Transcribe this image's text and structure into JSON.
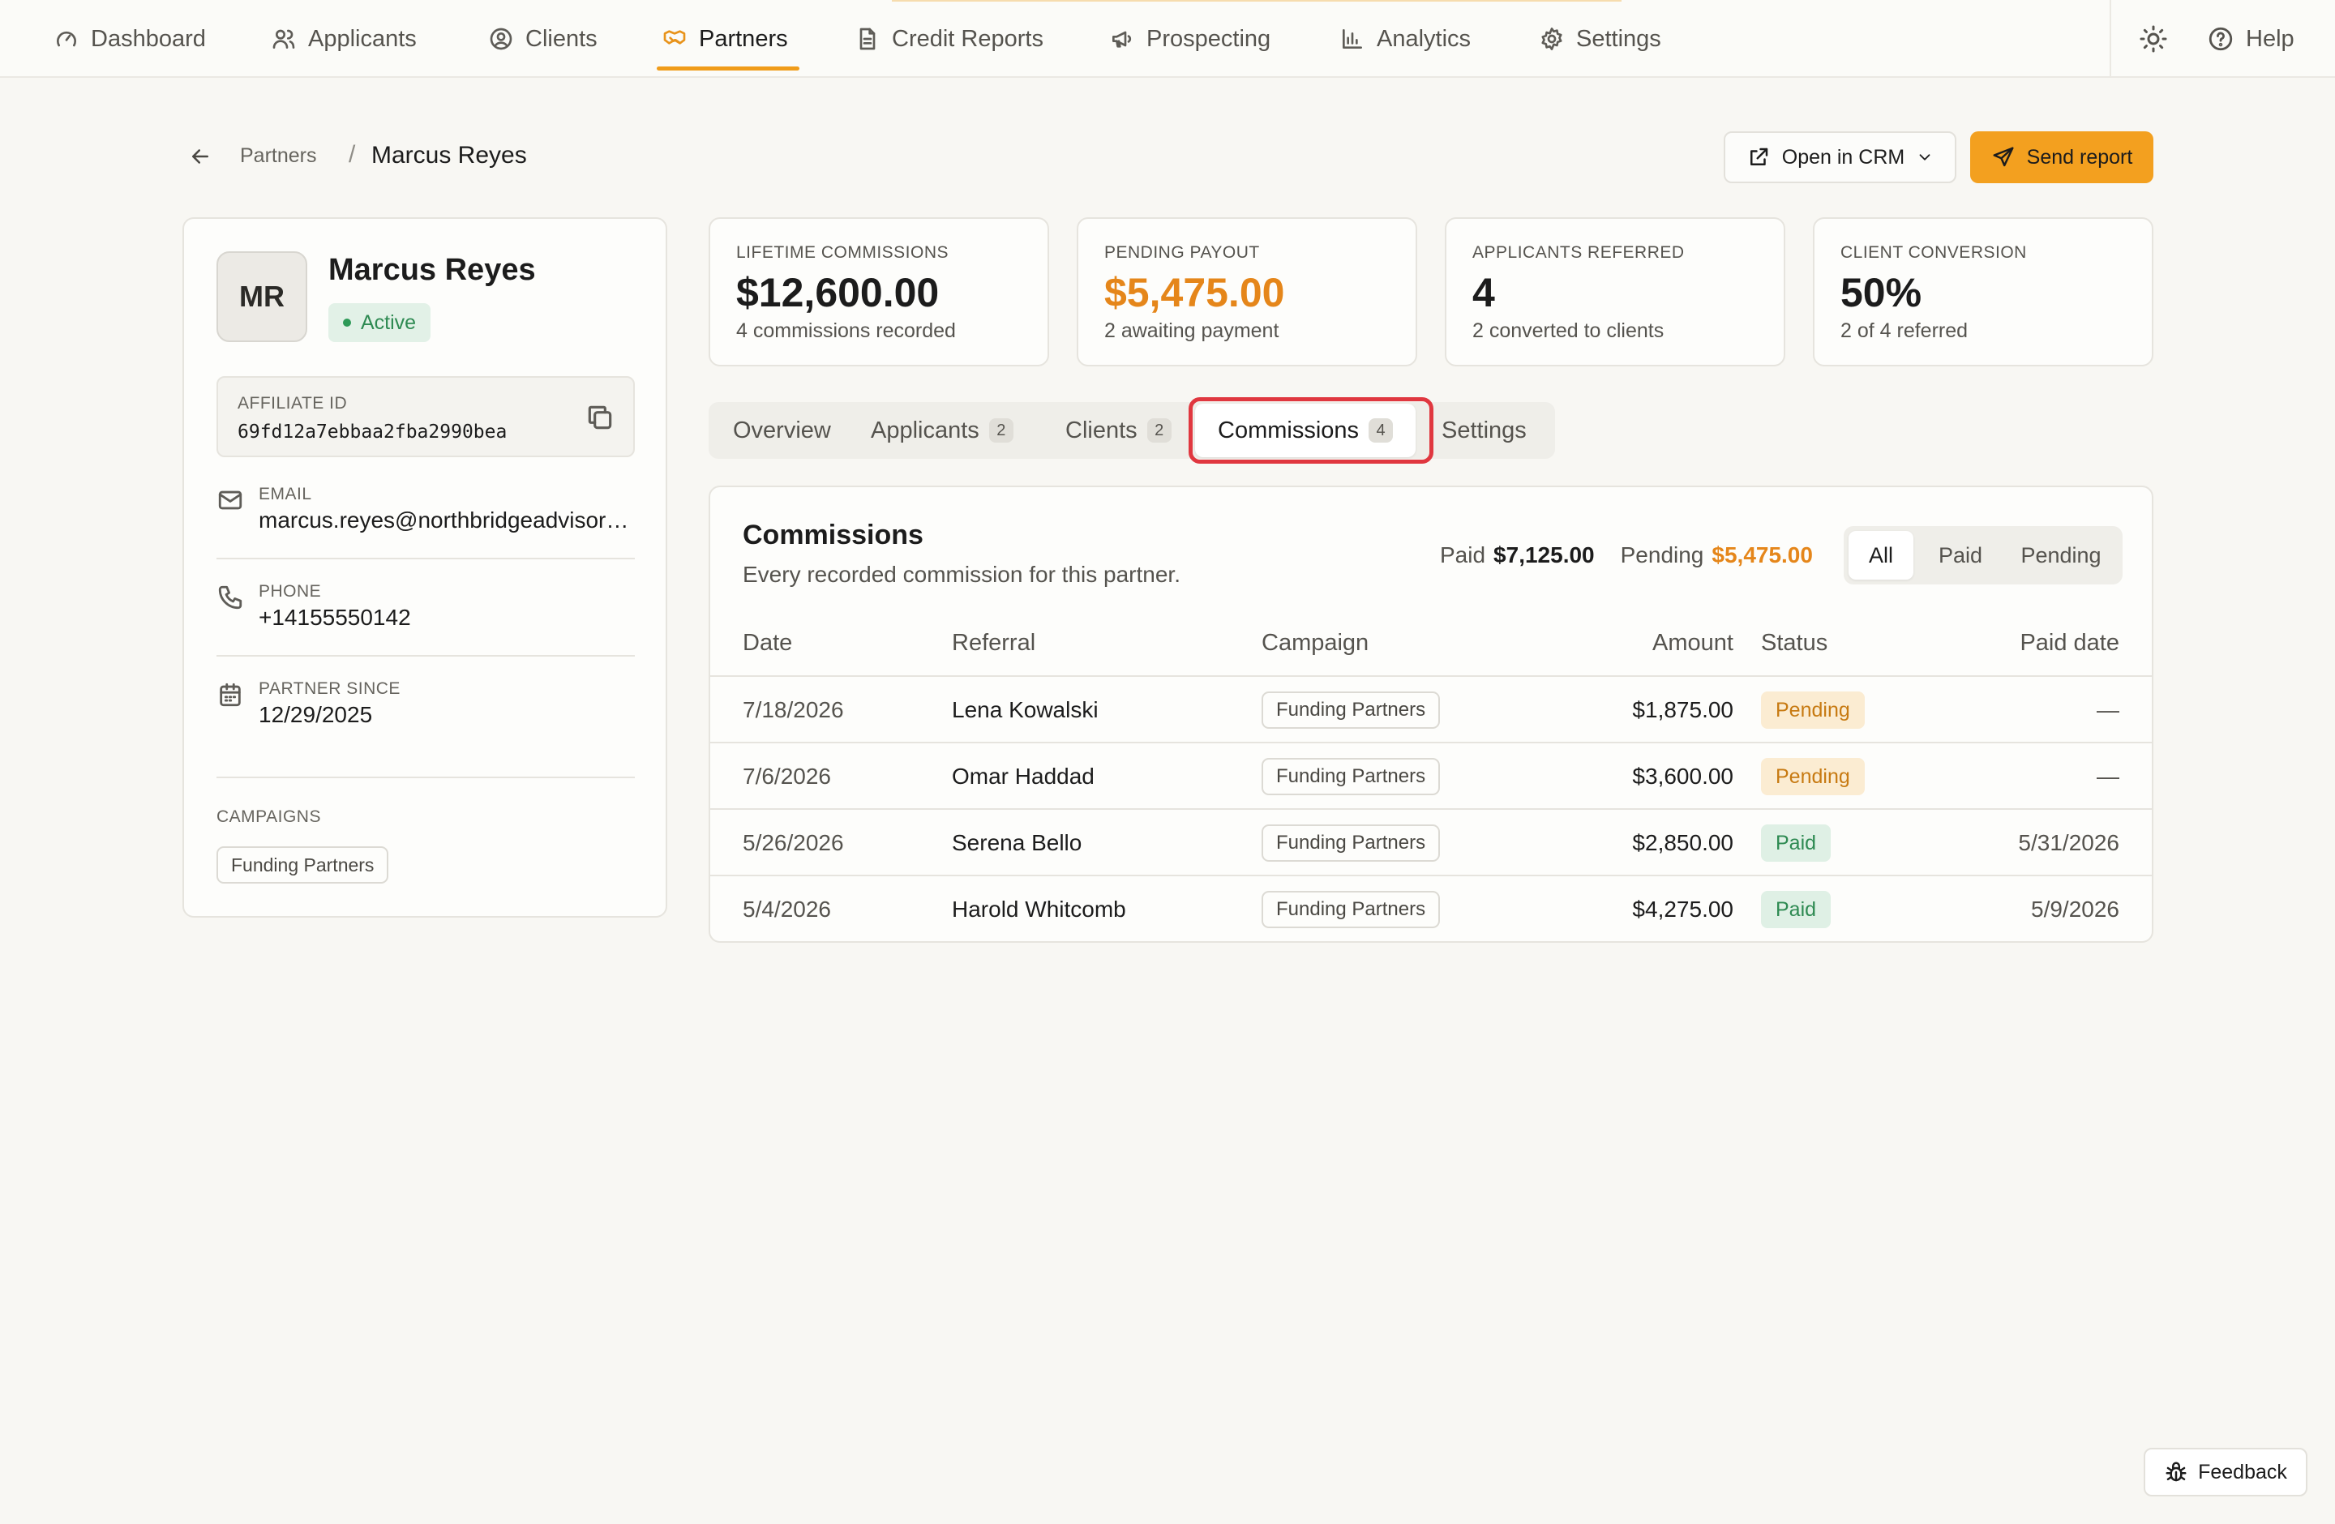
{
  "nav": {
    "items": [
      {
        "label": "Dashboard",
        "icon": "gauge-icon"
      },
      {
        "label": "Applicants",
        "icon": "users-icon"
      },
      {
        "label": "Clients",
        "icon": "user-circle-icon"
      },
      {
        "label": "Partners",
        "icon": "handshake-icon",
        "active": true
      },
      {
        "label": "Credit Reports",
        "icon": "file-text-icon"
      },
      {
        "label": "Prospecting",
        "icon": "megaphone-icon"
      },
      {
        "label": "Analytics",
        "icon": "bar-chart-icon"
      },
      {
        "label": "Settings",
        "icon": "gear-icon"
      }
    ],
    "help_label": "Help"
  },
  "breadcrumb": {
    "parent": "Partners",
    "separator": "/",
    "current": "Marcus Reyes"
  },
  "actions": {
    "open_crm_label": "Open in CRM",
    "send_report_label": "Send report"
  },
  "partner": {
    "initials": "MR",
    "name": "Marcus Reyes",
    "status": "Active",
    "affiliate_label": "AFFILIATE ID",
    "affiliate_id": "69fd12a7ebbaa2fba2990bea",
    "email_label": "EMAIL",
    "email": "marcus.reyes@northbridgeadvisors.com",
    "phone_label": "PHONE",
    "phone": "+14155550142",
    "since_label": "PARTNER SINCE",
    "since": "12/29/2025",
    "campaigns_label": "CAMPAIGNS",
    "campaigns": [
      "Funding Partners"
    ]
  },
  "stats": [
    {
      "label": "LIFETIME COMMISSIONS",
      "value": "$12,600.00",
      "sub": "4 commissions recorded"
    },
    {
      "label": "PENDING PAYOUT",
      "value": "$5,475.00",
      "sub": "2 awaiting payment"
    },
    {
      "label": "APPLICANTS REFERRED",
      "value": "4",
      "sub": "2 converted to clients"
    },
    {
      "label": "CLIENT CONVERSION",
      "value": "50%",
      "sub": "2 of 4 referred"
    }
  ],
  "tabs": [
    {
      "label": "Overview",
      "count": ""
    },
    {
      "label": "Applicants",
      "count": "2"
    },
    {
      "label": "Clients",
      "count": "2"
    },
    {
      "label": "Commissions",
      "count": "4",
      "active": true
    },
    {
      "label": "Settings",
      "count": ""
    }
  ],
  "commissions": {
    "title": "Commissions",
    "subtitle": "Every recorded commission for this partner.",
    "paid_label": "Paid",
    "paid_total": "$7,125.00",
    "pending_label": "Pending",
    "pending_total": "$5,475.00",
    "filters": [
      "All",
      "Paid",
      "Pending"
    ],
    "active_filter": "All",
    "columns": {
      "date": "Date",
      "referral": "Referral",
      "campaign": "Campaign",
      "amount": "Amount",
      "status": "Status",
      "paid_date": "Paid date"
    },
    "rows": [
      {
        "date": "7/18/2026",
        "referral": "Lena Kowalski",
        "campaign": "Funding Partners",
        "amount": "$1,875.00",
        "status": "Pending",
        "paid_date": "—"
      },
      {
        "date": "7/6/2026",
        "referral": "Omar Haddad",
        "campaign": "Funding Partners",
        "amount": "$3,600.00",
        "status": "Pending",
        "paid_date": "—"
      },
      {
        "date": "5/26/2026",
        "referral": "Serena Bello",
        "campaign": "Funding Partners",
        "amount": "$2,850.00",
        "status": "Paid",
        "paid_date": "5/31/2026"
      },
      {
        "date": "5/4/2026",
        "referral": "Harold Whitcomb",
        "campaign": "Funding Partners",
        "amount": "$4,275.00",
        "status": "Paid",
        "paid_date": "5/9/2026"
      }
    ]
  },
  "feedback_label": "Feedback",
  "colors": {
    "accent": "#f3a01f",
    "pending": "#e5861a",
    "paid": "#2e8a52",
    "focus_ring": "#e0373f"
  }
}
